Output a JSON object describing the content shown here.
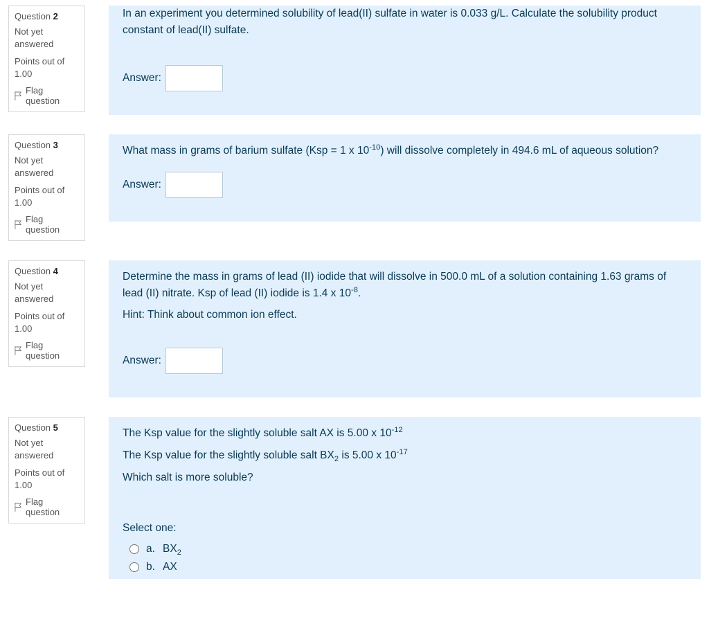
{
  "colors": {
    "page_bg": "#ffffff",
    "panel_bg": "#e1f0fc",
    "panel_text": "#0b3a55",
    "info_border": "#d8d8d8",
    "info_text": "#555555",
    "input_border": "#b5cbd8"
  },
  "common": {
    "question_label": "Question",
    "status": "Not yet answered",
    "points_prefix": "Points out of",
    "points_value": "1.00",
    "flag_label": "Flag question",
    "answer_label": "Answer:",
    "select_label": "Select one:"
  },
  "questions": {
    "q2": {
      "number": "2",
      "text_html": "In an experiment you determined solubility of lead(II) sulfate in water is 0.033 g/L. Calculate the solubility product constant of lead(II) sulfate.",
      "answer_value": ""
    },
    "q3": {
      "number": "3",
      "text_html": "What mass in grams of barium sulfate (Ksp = 1 x 10<span class='sup'>-10</span>) will dissolve completely in 494.6 mL of aqueous solution?",
      "answer_value": ""
    },
    "q4": {
      "number": "4",
      "text_html": "Determine the mass in grams of lead (II) iodide that will dissolve in 500.0 mL of a solution containing 1.63 grams of lead (II) nitrate. Ksp of lead (II) iodide is 1.4 x 10<span class='sup'>-8</span>.",
      "hint": "Hint: Think about common ion effect.",
      "answer_value": ""
    },
    "q5": {
      "number": "5",
      "line1_html": "The Ksp value for the slightly soluble salt AX is 5.00 x 10<span class='sup'>-12</span>",
      "line2_html": "The Ksp value for the slightly soluble salt BX<span class='sub'>2</span> is 5.00 x 10<span class='sup'>-17</span>",
      "line3_html": "Which salt is more soluble?",
      "options": [
        {
          "letter": "a.",
          "text_html": "BX<span class='sub'>2</span>",
          "checked": false
        },
        {
          "letter": "b.",
          "text_html": "AX",
          "checked": false
        }
      ]
    }
  }
}
